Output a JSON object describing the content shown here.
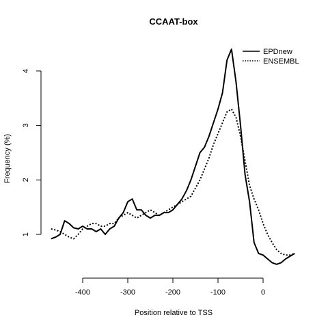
{
  "chart_data": {
    "type": "line",
    "title": "CCAAT-box",
    "xlabel": "Position relative to TSS",
    "ylabel": "Frequency (%)",
    "xlim": [
      -480,
      85
    ],
    "ylim": [
      0.5,
      4.5
    ],
    "x_ticks": [
      -400,
      -300,
      -200,
      -100,
      0
    ],
    "y_ticks": [
      1,
      2,
      3,
      4
    ],
    "legend_position": "top-right",
    "grid": false,
    "series": [
      {
        "name": "EPDnew",
        "style": "solid",
        "color": "#000000",
        "x": [
          -470,
          -460,
          -450,
          -440,
          -430,
          -420,
          -410,
          -400,
          -390,
          -380,
          -370,
          -360,
          -350,
          -340,
          -330,
          -320,
          -310,
          -300,
          -290,
          -280,
          -270,
          -260,
          -250,
          -240,
          -230,
          -220,
          -210,
          -200,
          -190,
          -180,
          -170,
          -160,
          -150,
          -140,
          -130,
          -120,
          -110,
          -100,
          -90,
          -80,
          -70,
          -60,
          -50,
          -40,
          -30,
          -20,
          -10,
          0,
          10,
          20,
          30,
          40,
          50,
          60,
          70
        ],
        "y": [
          0.92,
          0.95,
          1.0,
          1.25,
          1.2,
          1.12,
          1.1,
          1.15,
          1.1,
          1.1,
          1.05,
          1.1,
          1.0,
          1.1,
          1.15,
          1.3,
          1.4,
          1.6,
          1.65,
          1.45,
          1.45,
          1.35,
          1.3,
          1.35,
          1.35,
          1.4,
          1.4,
          1.45,
          1.55,
          1.65,
          1.8,
          2.0,
          2.25,
          2.5,
          2.6,
          2.8,
          3.05,
          3.3,
          3.6,
          4.2,
          4.4,
          3.8,
          3.0,
          2.1,
          1.6,
          0.85,
          0.65,
          0.62,
          0.55,
          0.48,
          0.45,
          0.48,
          0.55,
          0.6,
          0.65
        ]
      },
      {
        "name": "ENSEMBL",
        "style": "dotted",
        "color": "#000000",
        "x": [
          -470,
          -460,
          -450,
          -440,
          -430,
          -420,
          -410,
          -400,
          -390,
          -380,
          -370,
          -360,
          -350,
          -340,
          -330,
          -320,
          -310,
          -300,
          -290,
          -280,
          -270,
          -260,
          -250,
          -240,
          -230,
          -220,
          -210,
          -200,
          -190,
          -180,
          -170,
          -160,
          -150,
          -140,
          -130,
          -120,
          -110,
          -100,
          -90,
          -80,
          -70,
          -60,
          -50,
          -40,
          -30,
          -20,
          -10,
          0,
          10,
          20,
          30,
          40,
          50,
          60,
          70
        ],
        "y": [
          1.1,
          1.08,
          1.05,
          1.0,
          0.95,
          0.92,
          1.0,
          1.1,
          1.15,
          1.2,
          1.2,
          1.15,
          1.15,
          1.2,
          1.2,
          1.3,
          1.35,
          1.4,
          1.35,
          1.3,
          1.35,
          1.4,
          1.45,
          1.4,
          1.35,
          1.4,
          1.45,
          1.5,
          1.55,
          1.6,
          1.65,
          1.7,
          1.85,
          2.0,
          2.2,
          2.4,
          2.65,
          2.85,
          3.05,
          3.25,
          3.3,
          3.15,
          2.8,
          2.35,
          1.9,
          1.65,
          1.45,
          1.2,
          1.0,
          0.85,
          0.72,
          0.65,
          0.62,
          0.62,
          0.65
        ]
      }
    ]
  }
}
